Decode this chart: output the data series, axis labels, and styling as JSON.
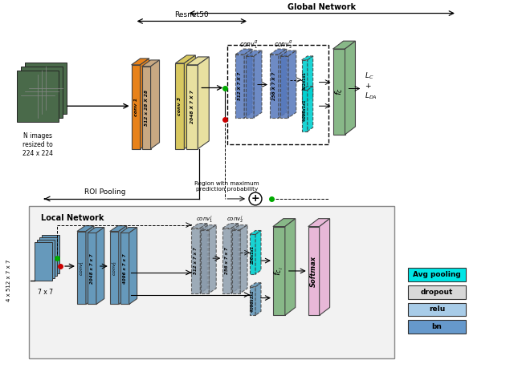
{
  "bg_color": "#ffffff",
  "global_network_label": "Global Network",
  "resnet50_label": "Resnet50",
  "local_network_label": "Local Network",
  "roi_pooling_label": "ROI Pooling",
  "region_label": "Region with maximum\nprediction probability",
  "input_label": "N images\nresized to\n224 x 224",
  "local_input_label": "7 x 7",
  "local_size_label": "4 x 512 x 7 x 7",
  "legend_items": [
    {
      "label": "Avg pooling",
      "color": "#00e5e5"
    },
    {
      "label": "dropout",
      "color": "#d8d8d8"
    },
    {
      "label": "relu",
      "color": "#a8cce8"
    },
    {
      "label": "bn",
      "color": "#6699cc"
    }
  ],
  "orange_color": "#e8821a",
  "tan_color": "#c8a882",
  "yellow_color": "#d8c860",
  "yellow_light": "#e8e0a0",
  "blue_conv_color": "#5577bb",
  "teal_color": "#00d0d0",
  "green_block_color": "#88b888",
  "pink_block_color": "#e8b8d8",
  "local_blue_color": "#6699bb",
  "gray_conv_color": "#8899aa",
  "input_img_color": "#4a6a4a"
}
